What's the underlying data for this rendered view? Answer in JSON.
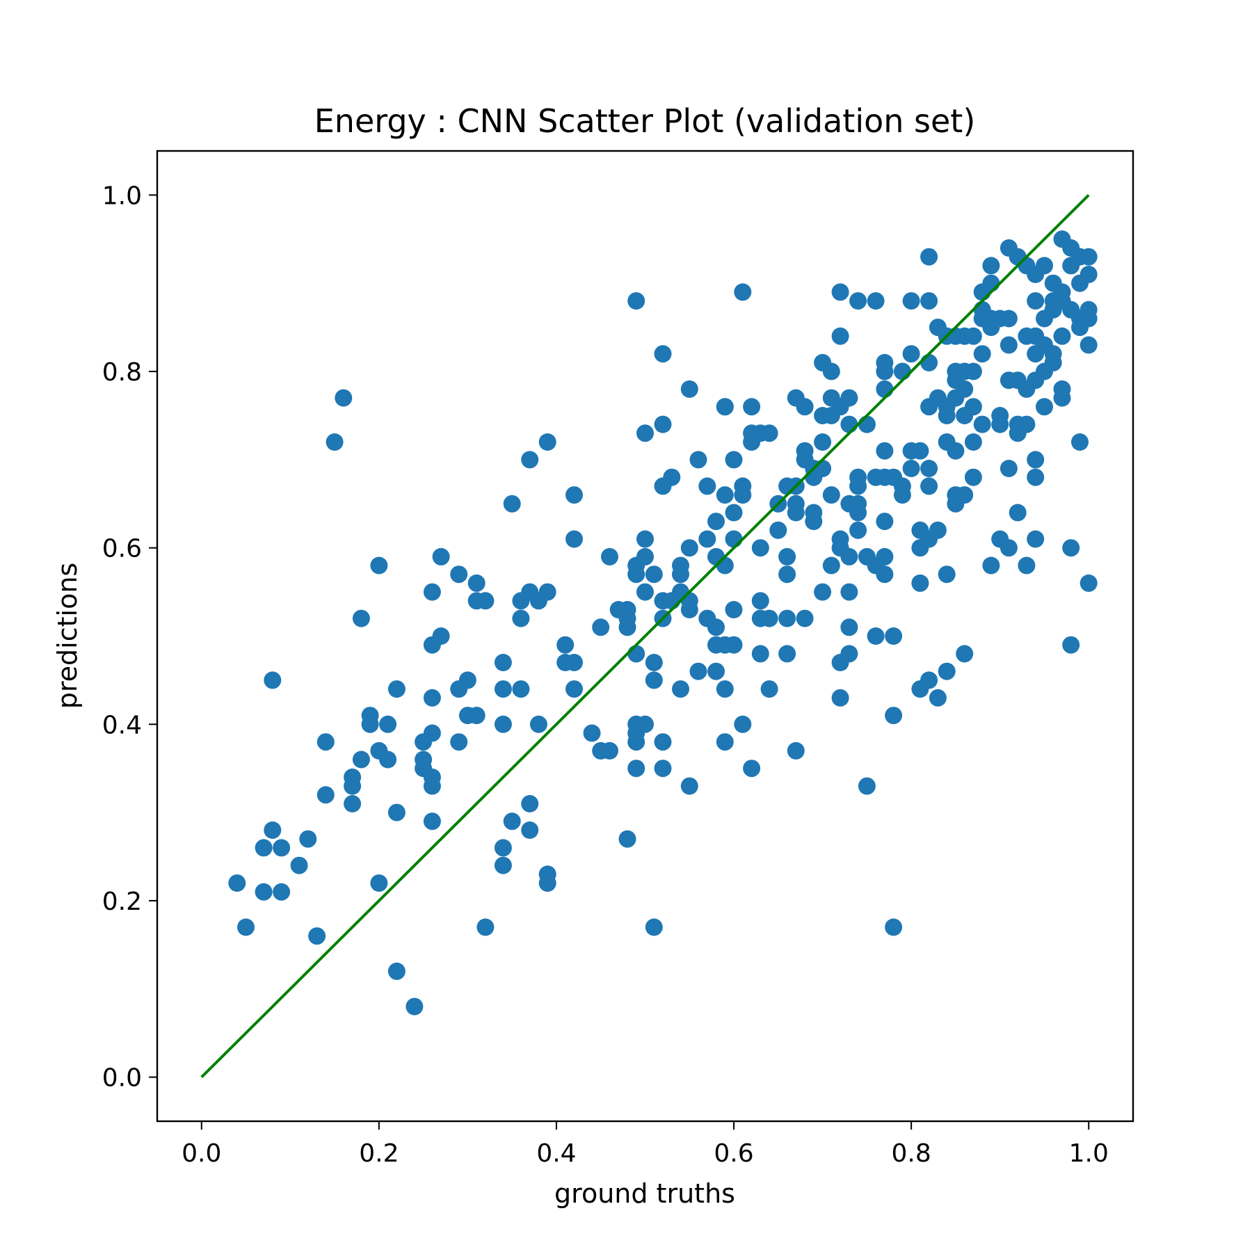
{
  "chart_data": {
    "type": "scatter",
    "title": "Energy : CNN Scatter Plot (validation set)",
    "xlabel": "ground truths",
    "ylabel": "predictions",
    "xlim": [
      -0.05,
      1.05
    ],
    "ylim": [
      -0.05,
      1.05
    ],
    "xticks": [
      "0.0",
      "0.2",
      "0.4",
      "0.6",
      "0.8",
      "1.0"
    ],
    "yticks": [
      "0.0",
      "0.2",
      "0.4",
      "0.6",
      "0.8",
      "1.0"
    ],
    "grid": false,
    "point_color": "#1f77b4",
    "line_color": "#008000",
    "reference_line": {
      "x": [
        0,
        1
      ],
      "y": [
        0,
        1
      ]
    },
    "points": [
      [
        0.04,
        0.22
      ],
      [
        0.05,
        0.17
      ],
      [
        0.07,
        0.26
      ],
      [
        0.07,
        0.21
      ],
      [
        0.08,
        0.28
      ],
      [
        0.08,
        0.45
      ],
      [
        0.09,
        0.26
      ],
      [
        0.09,
        0.21
      ],
      [
        0.11,
        0.24
      ],
      [
        0.12,
        0.27
      ],
      [
        0.13,
        0.16
      ],
      [
        0.14,
        0.32
      ],
      [
        0.14,
        0.38
      ],
      [
        0.15,
        0.72
      ],
      [
        0.16,
        0.77
      ],
      [
        0.17,
        0.34
      ],
      [
        0.17,
        0.33
      ],
      [
        0.17,
        0.31
      ],
      [
        0.18,
        0.36
      ],
      [
        0.18,
        0.52
      ],
      [
        0.19,
        0.41
      ],
      [
        0.19,
        0.4
      ],
      [
        0.2,
        0.37
      ],
      [
        0.2,
        0.58
      ],
      [
        0.2,
        0.22
      ],
      [
        0.21,
        0.4
      ],
      [
        0.21,
        0.36
      ],
      [
        0.22,
        0.44
      ],
      [
        0.22,
        0.3
      ],
      [
        0.22,
        0.12
      ],
      [
        0.24,
        0.08
      ],
      [
        0.25,
        0.35
      ],
      [
        0.25,
        0.38
      ],
      [
        0.25,
        0.36
      ],
      [
        0.26,
        0.34
      ],
      [
        0.26,
        0.43
      ],
      [
        0.26,
        0.49
      ],
      [
        0.26,
        0.33
      ],
      [
        0.26,
        0.29
      ],
      [
        0.26,
        0.55
      ],
      [
        0.26,
        0.39
      ],
      [
        0.27,
        0.59
      ],
      [
        0.27,
        0.5
      ],
      [
        0.29,
        0.57
      ],
      [
        0.29,
        0.38
      ],
      [
        0.29,
        0.44
      ],
      [
        0.3,
        0.45
      ],
      [
        0.3,
        0.41
      ],
      [
        0.31,
        0.56
      ],
      [
        0.31,
        0.54
      ],
      [
        0.31,
        0.41
      ],
      [
        0.32,
        0.54
      ],
      [
        0.32,
        0.17
      ],
      [
        0.34,
        0.26
      ],
      [
        0.34,
        0.24
      ],
      [
        0.34,
        0.4
      ],
      [
        0.34,
        0.44
      ],
      [
        0.34,
        0.47
      ],
      [
        0.35,
        0.65
      ],
      [
        0.35,
        0.29
      ],
      [
        0.36,
        0.44
      ],
      [
        0.36,
        0.52
      ],
      [
        0.36,
        0.54
      ],
      [
        0.37,
        0.55
      ],
      [
        0.37,
        0.28
      ],
      [
        0.37,
        0.31
      ],
      [
        0.37,
        0.7
      ],
      [
        0.38,
        0.54
      ],
      [
        0.38,
        0.4
      ],
      [
        0.39,
        0.72
      ],
      [
        0.39,
        0.55
      ],
      [
        0.39,
        0.23
      ],
      [
        0.39,
        0.22
      ],
      [
        0.41,
        0.47
      ],
      [
        0.41,
        0.49
      ],
      [
        0.42,
        0.66
      ],
      [
        0.42,
        0.47
      ],
      [
        0.42,
        0.44
      ],
      [
        0.42,
        0.61
      ],
      [
        0.44,
        0.39
      ],
      [
        0.45,
        0.37
      ],
      [
        0.45,
        0.51
      ],
      [
        0.46,
        0.37
      ],
      [
        0.46,
        0.59
      ],
      [
        0.47,
        0.53
      ],
      [
        0.48,
        0.27
      ],
      [
        0.48,
        0.53
      ],
      [
        0.48,
        0.51
      ],
      [
        0.48,
        0.52
      ],
      [
        0.49,
        0.35
      ],
      [
        0.49,
        0.4
      ],
      [
        0.49,
        0.39
      ],
      [
        0.49,
        0.58
      ],
      [
        0.49,
        0.57
      ],
      [
        0.49,
        0.88
      ],
      [
        0.49,
        0.48
      ],
      [
        0.49,
        0.38
      ],
      [
        0.5,
        0.55
      ],
      [
        0.5,
        0.59
      ],
      [
        0.5,
        0.61
      ],
      [
        0.5,
        0.4
      ],
      [
        0.5,
        0.73
      ],
      [
        0.51,
        0.45
      ],
      [
        0.51,
        0.17
      ],
      [
        0.51,
        0.57
      ],
      [
        0.51,
        0.47
      ],
      [
        0.52,
        0.38
      ],
      [
        0.52,
        0.74
      ],
      [
        0.52,
        0.67
      ],
      [
        0.52,
        0.52
      ],
      [
        0.52,
        0.54
      ],
      [
        0.52,
        0.35
      ],
      [
        0.52,
        0.82
      ],
      [
        0.53,
        0.68
      ],
      [
        0.53,
        0.54
      ],
      [
        0.54,
        0.58
      ],
      [
        0.54,
        0.57
      ],
      [
        0.54,
        0.55
      ],
      [
        0.54,
        0.44
      ],
      [
        0.55,
        0.53
      ],
      [
        0.55,
        0.78
      ],
      [
        0.55,
        0.54
      ],
      [
        0.55,
        0.6
      ],
      [
        0.55,
        0.33
      ],
      [
        0.56,
        0.7
      ],
      [
        0.56,
        0.46
      ],
      [
        0.57,
        0.67
      ],
      [
        0.57,
        0.52
      ],
      [
        0.57,
        0.61
      ],
      [
        0.58,
        0.51
      ],
      [
        0.58,
        0.63
      ],
      [
        0.58,
        0.49
      ],
      [
        0.58,
        0.59
      ],
      [
        0.58,
        0.46
      ],
      [
        0.59,
        0.58
      ],
      [
        0.59,
        0.76
      ],
      [
        0.59,
        0.66
      ],
      [
        0.59,
        0.38
      ],
      [
        0.59,
        0.49
      ],
      [
        0.59,
        0.76
      ],
      [
        0.59,
        0.44
      ],
      [
        0.6,
        0.49
      ],
      [
        0.6,
        0.7
      ],
      [
        0.6,
        0.53
      ],
      [
        0.6,
        0.61
      ],
      [
        0.6,
        0.64
      ],
      [
        0.61,
        0.89
      ],
      [
        0.61,
        0.4
      ],
      [
        0.61,
        0.66
      ],
      [
        0.61,
        0.67
      ],
      [
        0.62,
        0.73
      ],
      [
        0.62,
        0.35
      ],
      [
        0.62,
        0.76
      ],
      [
        0.62,
        0.72
      ],
      [
        0.63,
        0.6
      ],
      [
        0.63,
        0.48
      ],
      [
        0.63,
        0.73
      ],
      [
        0.63,
        0.54
      ],
      [
        0.63,
        0.52
      ],
      [
        0.64,
        0.73
      ],
      [
        0.64,
        0.52
      ],
      [
        0.64,
        0.44
      ],
      [
        0.65,
        0.65
      ],
      [
        0.65,
        0.62
      ],
      [
        0.66,
        0.59
      ],
      [
        0.66,
        0.57
      ],
      [
        0.66,
        0.52
      ],
      [
        0.66,
        0.67
      ],
      [
        0.66,
        0.48
      ],
      [
        0.67,
        0.37
      ],
      [
        0.67,
        0.65
      ],
      [
        0.67,
        0.64
      ],
      [
        0.67,
        0.77
      ],
      [
        0.67,
        0.67
      ],
      [
        0.68,
        0.76
      ],
      [
        0.68,
        0.52
      ],
      [
        0.68,
        0.71
      ],
      [
        0.68,
        0.7
      ],
      [
        0.69,
        0.69
      ],
      [
        0.69,
        0.68
      ],
      [
        0.69,
        0.64
      ],
      [
        0.69,
        0.63
      ],
      [
        0.7,
        0.75
      ],
      [
        0.7,
        0.81
      ],
      [
        0.7,
        0.72
      ],
      [
        0.7,
        0.69
      ],
      [
        0.7,
        0.55
      ],
      [
        0.71,
        0.77
      ],
      [
        0.71,
        0.75
      ],
      [
        0.71,
        0.58
      ],
      [
        0.71,
        0.8
      ],
      [
        0.71,
        0.66
      ],
      [
        0.72,
        0.61
      ],
      [
        0.72,
        0.47
      ],
      [
        0.72,
        0.43
      ],
      [
        0.72,
        0.6
      ],
      [
        0.72,
        0.89
      ],
      [
        0.72,
        0.84
      ],
      [
        0.72,
        0.76
      ],
      [
        0.73,
        0.65
      ],
      [
        0.73,
        0.59
      ],
      [
        0.73,
        0.55
      ],
      [
        0.73,
        0.48
      ],
      [
        0.73,
        0.51
      ],
      [
        0.73,
        0.74
      ],
      [
        0.73,
        0.77
      ],
      [
        0.74,
        0.62
      ],
      [
        0.74,
        0.68
      ],
      [
        0.74,
        0.67
      ],
      [
        0.74,
        0.64
      ],
      [
        0.74,
        0.65
      ],
      [
        0.74,
        0.88
      ],
      [
        0.75,
        0.59
      ],
      [
        0.75,
        0.33
      ],
      [
        0.75,
        0.74
      ],
      [
        0.75,
        0.74
      ],
      [
        0.76,
        0.88
      ],
      [
        0.76,
        0.58
      ],
      [
        0.76,
        0.68
      ],
      [
        0.76,
        0.5
      ],
      [
        0.77,
        0.81
      ],
      [
        0.77,
        0.71
      ],
      [
        0.77,
        0.59
      ],
      [
        0.77,
        0.63
      ],
      [
        0.77,
        0.8
      ],
      [
        0.77,
        0.78
      ],
      [
        0.77,
        0.68
      ],
      [
        0.77,
        0.57
      ],
      [
        0.78,
        0.41
      ],
      [
        0.78,
        0.68
      ],
      [
        0.78,
        0.5
      ],
      [
        0.78,
        0.17
      ],
      [
        0.79,
        0.8
      ],
      [
        0.79,
        0.67
      ],
      [
        0.79,
        0.66
      ],
      [
        0.8,
        0.82
      ],
      [
        0.8,
        0.69
      ],
      [
        0.8,
        0.88
      ],
      [
        0.8,
        0.71
      ],
      [
        0.81,
        0.6
      ],
      [
        0.81,
        0.44
      ],
      [
        0.81,
        0.62
      ],
      [
        0.81,
        0.71
      ],
      [
        0.81,
        0.56
      ],
      [
        0.82,
        0.93
      ],
      [
        0.82,
        0.69
      ],
      [
        0.82,
        0.81
      ],
      [
        0.82,
        0.88
      ],
      [
        0.82,
        0.76
      ],
      [
        0.82,
        0.67
      ],
      [
        0.82,
        0.61
      ],
      [
        0.82,
        0.45
      ],
      [
        0.83,
        0.62
      ],
      [
        0.83,
        0.85
      ],
      [
        0.83,
        0.43
      ],
      [
        0.83,
        0.77
      ],
      [
        0.84,
        0.76
      ],
      [
        0.84,
        0.72
      ],
      [
        0.84,
        0.75
      ],
      [
        0.84,
        0.84
      ],
      [
        0.84,
        0.57
      ],
      [
        0.84,
        0.46
      ],
      [
        0.85,
        0.84
      ],
      [
        0.85,
        0.79
      ],
      [
        0.85,
        0.77
      ],
      [
        0.85,
        0.8
      ],
      [
        0.85,
        0.66
      ],
      [
        0.85,
        0.71
      ],
      [
        0.85,
        0.65
      ],
      [
        0.86,
        0.84
      ],
      [
        0.86,
        0.8
      ],
      [
        0.86,
        0.78
      ],
      [
        0.86,
        0.75
      ],
      [
        0.86,
        0.66
      ],
      [
        0.86,
        0.48
      ],
      [
        0.87,
        0.84
      ],
      [
        0.87,
        0.8
      ],
      [
        0.87,
        0.76
      ],
      [
        0.87,
        0.72
      ],
      [
        0.87,
        0.68
      ],
      [
        0.88,
        0.86
      ],
      [
        0.88,
        0.82
      ],
      [
        0.88,
        0.74
      ],
      [
        0.88,
        0.89
      ],
      [
        0.88,
        0.87
      ],
      [
        0.89,
        0.9
      ],
      [
        0.89,
        0.86
      ],
      [
        0.89,
        0.58
      ],
      [
        0.89,
        0.92
      ],
      [
        0.89,
        0.85
      ],
      [
        0.9,
        0.75
      ],
      [
        0.9,
        0.61
      ],
      [
        0.9,
        0.86
      ],
      [
        0.9,
        0.74
      ],
      [
        0.91,
        0.94
      ],
      [
        0.91,
        0.83
      ],
      [
        0.91,
        0.79
      ],
      [
        0.91,
        0.69
      ],
      [
        0.91,
        0.6
      ],
      [
        0.91,
        0.86
      ],
      [
        0.92,
        0.73
      ],
      [
        0.92,
        0.64
      ],
      [
        0.92,
        0.74
      ],
      [
        0.92,
        0.93
      ],
      [
        0.92,
        0.79
      ],
      [
        0.93,
        0.84
      ],
      [
        0.93,
        0.58
      ],
      [
        0.93,
        0.74
      ],
      [
        0.93,
        0.78
      ],
      [
        0.93,
        0.92
      ],
      [
        0.94,
        0.82
      ],
      [
        0.94,
        0.84
      ],
      [
        0.94,
        0.79
      ],
      [
        0.94,
        0.7
      ],
      [
        0.94,
        0.68
      ],
      [
        0.94,
        0.61
      ],
      [
        0.94,
        0.91
      ],
      [
        0.94,
        0.88
      ],
      [
        0.95,
        0.83
      ],
      [
        0.95,
        0.92
      ],
      [
        0.95,
        0.86
      ],
      [
        0.95,
        0.8
      ],
      [
        0.95,
        0.76
      ],
      [
        0.96,
        0.9
      ],
      [
        0.96,
        0.88
      ],
      [
        0.96,
        0.81
      ],
      [
        0.96,
        0.82
      ],
      [
        0.96,
        0.87
      ],
      [
        0.97,
        0.95
      ],
      [
        0.97,
        0.88
      ],
      [
        0.97,
        0.84
      ],
      [
        0.97,
        0.78
      ],
      [
        0.97,
        0.77
      ],
      [
        0.97,
        0.89
      ],
      [
        0.98,
        0.92
      ],
      [
        0.98,
        0.94
      ],
      [
        0.98,
        0.87
      ],
      [
        0.98,
        0.6
      ],
      [
        0.98,
        0.49
      ],
      [
        0.99,
        0.93
      ],
      [
        0.99,
        0.9
      ],
      [
        0.99,
        0.86
      ],
      [
        0.99,
        0.85
      ],
      [
        0.99,
        0.72
      ],
      [
        1.0,
        0.93
      ],
      [
        1.0,
        0.91
      ],
      [
        1.0,
        0.87
      ],
      [
        1.0,
        0.86
      ],
      [
        1.0,
        0.83
      ],
      [
        1.0,
        0.56
      ]
    ]
  }
}
